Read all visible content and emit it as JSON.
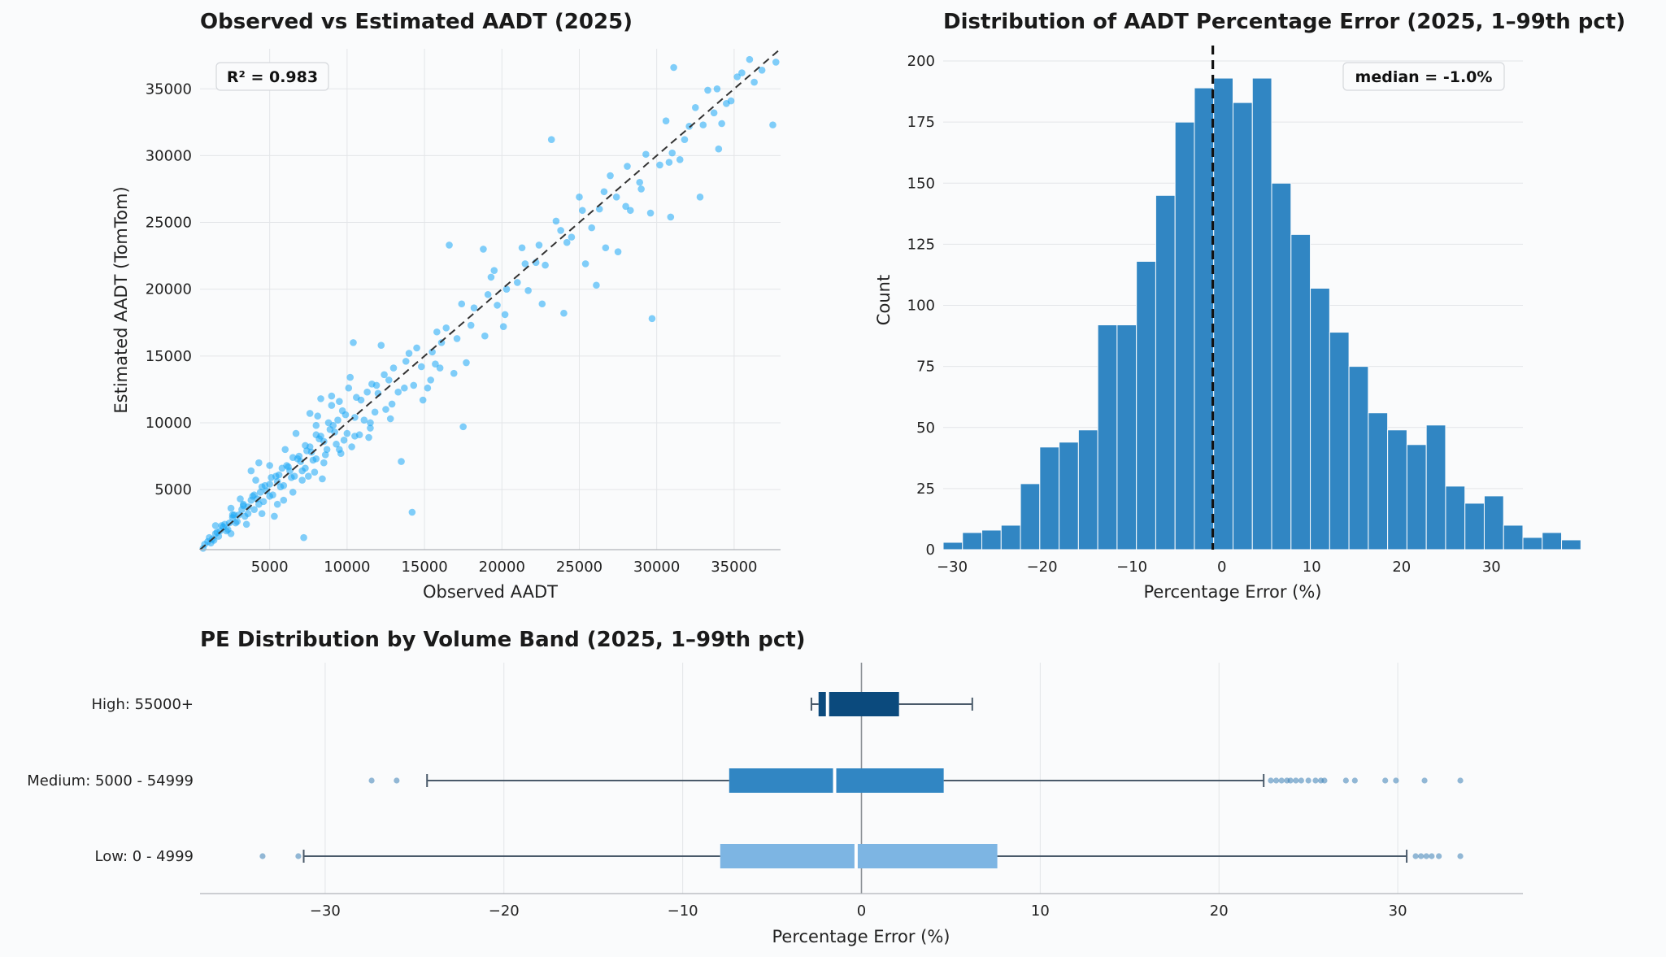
{
  "colors": {
    "scatter": "#1aa7f5",
    "hist": "#3186c3",
    "box_high": "#0b4a7d",
    "box_medium": "#3186c3",
    "box_low": "#7db5e3",
    "whisker": "#4a5a6a"
  },
  "chart_data": [
    {
      "type": "scatter",
      "title": "Observed vs Estimated AADT (2025)",
      "xlabel": "Observed AADT",
      "ylabel": "Estimated AADT (TomTom)",
      "xlim": [
        500,
        38000
      ],
      "ylim": [
        500,
        38000
      ],
      "xticks": [
        "5000",
        "10000",
        "15000",
        "20000",
        "25000",
        "30000",
        "35000"
      ],
      "yticks": [
        "5000",
        "10000",
        "15000",
        "20000",
        "25000",
        "30000",
        "35000"
      ],
      "annotation": "R² = 0.983",
      "reference_line": "y = x (dashed)",
      "grid": true,
      "points": [
        [
          23200,
          31200
        ],
        [
          31100,
          36600
        ],
        [
          35500,
          36200
        ],
        [
          37700,
          37000
        ],
        [
          37500,
          32300
        ],
        [
          34200,
          32400
        ],
        [
          32800,
          26900
        ],
        [
          29700,
          17800
        ],
        [
          17500,
          9700
        ],
        [
          13500,
          7100
        ],
        [
          14200,
          3300
        ],
        [
          7200,
          1400
        ],
        [
          10400,
          16000
        ],
        [
          12200,
          15800
        ],
        [
          19500,
          21400
        ],
        [
          22200,
          22000
        ],
        [
          25400,
          21900
        ],
        [
          16600,
          23300
        ],
        [
          18800,
          23000
        ],
        [
          24500,
          23900
        ],
        [
          26700,
          23100
        ],
        [
          30600,
          32600
        ],
        [
          28000,
          26200
        ],
        [
          29000,
          27500
        ],
        [
          34500,
          33900
        ],
        [
          32100,
          32200
        ],
        [
          33300,
          34900
        ],
        [
          33700,
          33200
        ],
        [
          28300,
          25900
        ],
        [
          26300,
          26000
        ],
        [
          31000,
          30200
        ],
        [
          31500,
          29700
        ],
        [
          21700,
          19900
        ],
        [
          20200,
          18100
        ],
        [
          18900,
          16500
        ],
        [
          16100,
          16000
        ],
        [
          16000,
          14100
        ],
        [
          15400,
          13200
        ],
        [
          16900,
          13700
        ],
        [
          13300,
          12300
        ],
        [
          11800,
          10800
        ],
        [
          12800,
          10300
        ],
        [
          11300,
          12300
        ],
        [
          9500,
          11600
        ],
        [
          10200,
          13400
        ],
        [
          9000,
          11300
        ],
        [
          8300,
          11800
        ],
        [
          8000,
          9800
        ],
        [
          7600,
          10700
        ],
        [
          6700,
          9200
        ],
        [
          3800,
          6400
        ],
        [
          4300,
          7000
        ],
        [
          5300,
          3000
        ],
        [
          5900,
          4200
        ],
        [
          7100,
          5700
        ],
        [
          7900,
          6300
        ],
        [
          8400,
          5800
        ],
        [
          9600,
          7700
        ],
        [
          10800,
          9100
        ],
        [
          11400,
          8900
        ],
        [
          14900,
          11700
        ],
        [
          15200,
          12600
        ],
        [
          17700,
          14500
        ],
        [
          20100,
          17200
        ],
        [
          22600,
          18900
        ],
        [
          24000,
          18200
        ],
        [
          26100,
          20300
        ],
        [
          27500,
          22800
        ],
        [
          29600,
          25700
        ],
        [
          30900,
          25400
        ],
        [
          34000,
          30500
        ],
        [
          36800,
          36400
        ],
        [
          35200,
          35900
        ],
        [
          27000,
          28500
        ],
        [
          25000,
          26900
        ],
        [
          23500,
          25100
        ],
        [
          21300,
          23100
        ],
        [
          19300,
          20900
        ],
        [
          17400,
          18900
        ],
        [
          15800,
          16800
        ],
        [
          14500,
          15600
        ],
        [
          13000,
          14100
        ],
        [
          11900,
          12800
        ],
        [
          10900,
          11700
        ],
        [
          9900,
          10600
        ],
        [
          9100,
          9800
        ],
        [
          8300,
          9000
        ],
        [
          7600,
          8200
        ],
        [
          6900,
          7500
        ],
        [
          6200,
          6700
        ],
        [
          5600,
          6100
        ],
        [
          5000,
          5400
        ],
        [
          4400,
          4800
        ],
        [
          3800,
          4200
        ],
        [
          3200,
          3500
        ],
        [
          2600,
          2900
        ],
        [
          2000,
          2200
        ],
        [
          1500,
          1700
        ],
        [
          1000,
          1100
        ],
        [
          18000,
          17300
        ],
        [
          19700,
          18800
        ],
        [
          21000,
          20500
        ],
        [
          22800,
          21800
        ],
        [
          24200,
          23500
        ],
        [
          25800,
          24600
        ],
        [
          27400,
          26900
        ],
        [
          28900,
          28000
        ],
        [
          30200,
          29300
        ],
        [
          31800,
          31200
        ],
        [
          33000,
          32300
        ],
        [
          34800,
          34100
        ],
        [
          36300,
          35500
        ],
        [
          12500,
          11000
        ],
        [
          11100,
          10200
        ],
        [
          10000,
          9200
        ],
        [
          9300,
          8400
        ],
        [
          8700,
          8000
        ],
        [
          8000,
          7300
        ],
        [
          7300,
          6600
        ],
        [
          6600,
          6000
        ],
        [
          5900,
          5300
        ],
        [
          5200,
          4600
        ],
        [
          4600,
          4100
        ],
        [
          4000,
          3500
        ],
        [
          3400,
          3000
        ],
        [
          2800,
          2500
        ],
        [
          2300,
          2000
        ],
        [
          1700,
          1500
        ],
        [
          1200,
          1000
        ],
        [
          14000,
          15200
        ],
        [
          12400,
          13600
        ],
        [
          11600,
          12900
        ],
        [
          10600,
          11900
        ],
        [
          9700,
          10900
        ],
        [
          8800,
          10000
        ],
        [
          8000,
          9100
        ],
        [
          7300,
          8300
        ],
        [
          6500,
          7400
        ],
        [
          5800,
          6600
        ],
        [
          5100,
          5900
        ],
        [
          4500,
          5200
        ],
        [
          3900,
          4500
        ],
        [
          3300,
          3800
        ],
        [
          2700,
          3100
        ],
        [
          2100,
          2400
        ],
        [
          1600,
          1800
        ],
        [
          13700,
          12600
        ],
        [
          12000,
          12200
        ],
        [
          10500,
          10400
        ],
        [
          9200,
          9300
        ],
        [
          8500,
          8600
        ],
        [
          7700,
          7800
        ],
        [
          7000,
          7100
        ],
        [
          6300,
          6400
        ],
        [
          5500,
          5600
        ],
        [
          4800,
          4900
        ],
        [
          4200,
          4300
        ],
        [
          3600,
          3700
        ],
        [
          3000,
          3100
        ],
        [
          2400,
          2500
        ],
        [
          1800,
          1900
        ],
        [
          1300,
          1300
        ],
        [
          9800,
          8700
        ],
        [
          9400,
          10200
        ],
        [
          8900,
          9500
        ],
        [
          8600,
          7600
        ],
        [
          8200,
          8800
        ],
        [
          7800,
          7200
        ],
        [
          7400,
          7900
        ],
        [
          7100,
          6400
        ],
        [
          6800,
          7300
        ],
        [
          6400,
          5900
        ],
        [
          6100,
          6800
        ],
        [
          5700,
          5200
        ],
        [
          5400,
          6000
        ],
        [
          5000,
          4500
        ],
        [
          4700,
          5300
        ],
        [
          4300,
          3900
        ],
        [
          4000,
          4600
        ],
        [
          3600,
          3200
        ],
        [
          3300,
          3900
        ],
        [
          2900,
          2600
        ],
        [
          2600,
          3100
        ],
        [
          2200,
          1900
        ],
        [
          1900,
          2300
        ],
        [
          1400,
          1200
        ],
        [
          1100,
          1400
        ],
        [
          800,
          900
        ],
        [
          700,
          600
        ],
        [
          12700,
          13200
        ],
        [
          13800,
          14600
        ],
        [
          14800,
          14200
        ],
        [
          15500,
          15300
        ],
        [
          16400,
          17100
        ],
        [
          17100,
          16300
        ],
        [
          18200,
          18600
        ],
        [
          19100,
          19600
        ],
        [
          20300,
          20000
        ],
        [
          21500,
          21900
        ],
        [
          22400,
          23300
        ],
        [
          23800,
          24400
        ],
        [
          25200,
          25900
        ],
        [
          26600,
          27300
        ],
        [
          28100,
          29200
        ],
        [
          29300,
          30100
        ],
        [
          30800,
          29500
        ],
        [
          32500,
          33600
        ],
        [
          33900,
          35000
        ],
        [
          36000,
          37200
        ],
        [
          10300,
          8200
        ],
        [
          11500,
          9600
        ],
        [
          12900,
          11400
        ],
        [
          14300,
          12800
        ],
        [
          15700,
          14400
        ],
        [
          8100,
          10500
        ],
        [
          9000,
          12000
        ],
        [
          10100,
          12600
        ],
        [
          6000,
          8000
        ],
        [
          5000,
          6800
        ],
        [
          4100,
          5700
        ],
        [
          3100,
          4300
        ],
        [
          2500,
          3600
        ],
        [
          1500,
          2300
        ],
        [
          6500,
          4800
        ],
        [
          5500,
          3900
        ],
        [
          4500,
          3200
        ],
        [
          3500,
          2400
        ],
        [
          2500,
          1700
        ],
        [
          7500,
          6000
        ],
        [
          8500,
          7000
        ],
        [
          9500,
          8000
        ],
        [
          10500,
          9000
        ],
        [
          11500,
          10000
        ]
      ]
    },
    {
      "type": "bar",
      "title": "Distribution of AADT Percentage Error (2025, 1–99th pct)",
      "xlabel": "Percentage Error (%)",
      "ylabel": "Count",
      "xlim": [
        -31,
        33.5
      ],
      "ylim": [
        0,
        205
      ],
      "xticks": [
        "−30",
        "−20",
        "−10",
        "0",
        "10",
        "20",
        "30"
      ],
      "yticks": [
        "0",
        "25",
        "50",
        "75",
        "100",
        "125",
        "150",
        "175",
        "200"
      ],
      "bin_start": -31,
      "bin_width": 2.15,
      "values": [
        3,
        7,
        8,
        10,
        27,
        42,
        44,
        49,
        92,
        92,
        118,
        145,
        175,
        189,
        193,
        183,
        193,
        150,
        129,
        107,
        89,
        75,
        56,
        49,
        43,
        51,
        26,
        19,
        22,
        10,
        5,
        7,
        4
      ],
      "median_line": -1.0,
      "annotation": "median = -1.0%",
      "grid": true
    },
    {
      "type": "box",
      "title": "PE Distribution by Volume Band (2025, 1–99th pct)",
      "xlabel": "Percentage Error (%)",
      "xlim": [
        -37,
        37
      ],
      "xticks": [
        "−30",
        "−20",
        "−10",
        "0",
        "10",
        "20",
        "30"
      ],
      "categories": [
        "High: 55000+",
        "Medium: 5000 - 54999",
        "Low: 0 - 4999"
      ],
      "boxes": [
        {
          "name": "High: 55000+",
          "whisker_low": -2.8,
          "q1": -2.4,
          "median": -1.9,
          "q3": 2.1,
          "whisker_high": 6.2,
          "outliers": []
        },
        {
          "name": "Medium: 5000 - 54999",
          "whisker_low": -24.3,
          "q1": -7.4,
          "median": -1.5,
          "q3": 4.6,
          "whisker_high": 22.5,
          "outliers": [
            -27.4,
            -26.0,
            22.9,
            23.2,
            23.5,
            23.8,
            24.0,
            24.3,
            24.6,
            25.0,
            25.4,
            25.7,
            25.9,
            27.1,
            27.6,
            29.3,
            29.9,
            31.5,
            33.5
          ]
        },
        {
          "name": "Low: 0 - 4999",
          "whisker_low": -31.2,
          "q1": -7.9,
          "median": -0.3,
          "q3": 7.6,
          "whisker_high": 30.5,
          "outliers": [
            -33.5,
            -31.5,
            31.0,
            31.3,
            31.6,
            31.9,
            32.3,
            33.5
          ]
        }
      ],
      "zero_line": true,
      "grid": true
    }
  ]
}
